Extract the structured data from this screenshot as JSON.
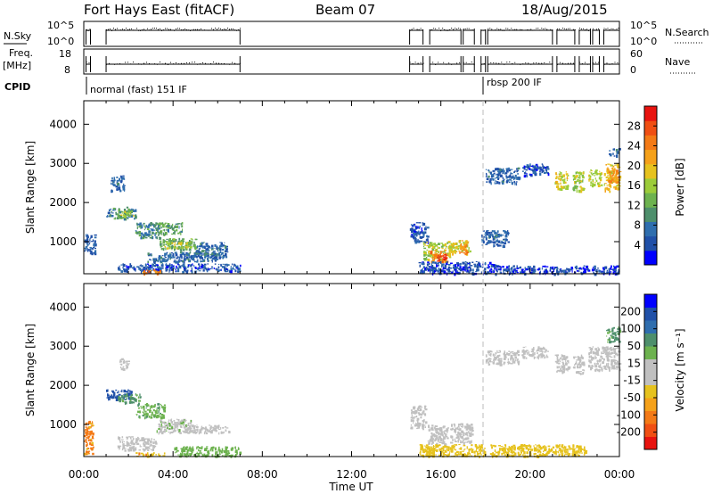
{
  "header": {
    "radar": "Fort Hays East (fitACF)",
    "beam": "Beam 07",
    "date": "18/Aug/2015"
  },
  "side_labels": {
    "nsky_label": "N.Sky",
    "nsky_ticks": [
      "10^5",
      "10^0"
    ],
    "nsearch_label": "N.Search",
    "nsearch_ticks": [
      "10^5",
      "10^0"
    ],
    "freq_label": "Freq.",
    "freq_unit": "[MHz]",
    "freq_ticks": [
      "18",
      "8"
    ],
    "nave_label": "Nave",
    "nave_ticks": [
      "60",
      "0"
    ],
    "cpid_label": "CPID",
    "cpid_modes": [
      {
        "label": "normal (fast) 151 IF",
        "start_hour": 0.0
      },
      {
        "label": "rbsp 200 IF",
        "start_hour": 18.0
      }
    ]
  },
  "colors": {
    "power_bar": [
      "#0000ff",
      "#2050a8",
      "#2f6eae",
      "#4e8f6c",
      "#6db24f",
      "#9ccc3a",
      "#e6c21e",
      "#f5a11a",
      "#f47a16",
      "#f04f13",
      "#e8130f"
    ],
    "velocity_bar": [
      "#e8130f",
      "#f04f13",
      "#f47a16",
      "#f5a11a",
      "#e6c21e",
      "#c0c0c0",
      "#c0c0c0",
      "#6db24f",
      "#4e8f6c",
      "#2f6eae",
      "#2050a8",
      "#0000ff"
    ],
    "scatter_grey": "#c0c0c0",
    "dashed": "#bbbbbb"
  },
  "chart_data": [
    {
      "type": "heatmap",
      "name": "power",
      "xlabel": "",
      "ylabel": "Slant Range [km]",
      "xlim": [
        0,
        24
      ],
      "ylim": [
        180,
        4600
      ],
      "yticks": [
        "1000",
        "2000",
        "3000",
        "4000"
      ],
      "colorbar_label": "Power [dB]",
      "colorbar_ticks": [
        "4",
        "8",
        "12",
        "16",
        "20",
        "24",
        "28"
      ],
      "colorbar_range": [
        0,
        32
      ],
      "blobs": [
        {
          "t0": 1.3,
          "t1": 2.3,
          "r0": 1600,
          "r1": 1900,
          "v": 10
        },
        {
          "t0": 1.5,
          "t1": 2.2,
          "r0": 1650,
          "r1": 1800,
          "v": 16
        },
        {
          "t0": 1.0,
          "t1": 1.3,
          "r0": 1650,
          "r1": 1850,
          "v": 8
        },
        {
          "t0": 1.2,
          "t1": 1.8,
          "r0": 2300,
          "r1": 2700,
          "v": 6
        },
        {
          "t0": 2.3,
          "t1": 3.4,
          "r0": 1100,
          "r1": 1500,
          "v": 9
        },
        {
          "t0": 3.2,
          "t1": 4.4,
          "r0": 1200,
          "r1": 1500,
          "v": 11
        },
        {
          "t0": 3.4,
          "t1": 5.0,
          "r0": 800,
          "r1": 1100,
          "v": 12
        },
        {
          "t0": 3.6,
          "t1": 4.8,
          "r0": 850,
          "r1": 1000,
          "v": 16
        },
        {
          "t0": 2.8,
          "t1": 6.0,
          "r0": 500,
          "r1": 750,
          "v": 7
        },
        {
          "t0": 1.5,
          "t1": 7.0,
          "r0": 250,
          "r1": 450,
          "v": 5
        },
        {
          "t0": 2.5,
          "t1": 3.5,
          "r0": 200,
          "r1": 300,
          "v": 24
        },
        {
          "t0": 0.0,
          "t1": 0.5,
          "r0": 700,
          "r1": 1200,
          "v": 6
        },
        {
          "t0": 5.0,
          "t1": 6.4,
          "r0": 600,
          "r1": 1000,
          "v": 7
        },
        {
          "t0": 14.6,
          "t1": 15.4,
          "r0": 1000,
          "r1": 1500,
          "v": 5
        },
        {
          "t0": 15.2,
          "t1": 16.4,
          "r0": 550,
          "r1": 1000,
          "v": 16
        },
        {
          "t0": 15.5,
          "t1": 16.3,
          "r0": 500,
          "r1": 800,
          "v": 24
        },
        {
          "t0": 15.8,
          "t1": 16.2,
          "r0": 450,
          "r1": 700,
          "v": 29
        },
        {
          "t0": 16.3,
          "t1": 17.3,
          "r0": 700,
          "r1": 1050,
          "v": 18
        },
        {
          "t0": 16.8,
          "t1": 17.2,
          "r0": 700,
          "r1": 950,
          "v": 24
        },
        {
          "t0": 15.0,
          "t1": 18.5,
          "r0": 200,
          "r1": 500,
          "v": 4
        },
        {
          "t0": 17.8,
          "t1": 19.0,
          "r0": 900,
          "r1": 1300,
          "v": 6
        },
        {
          "t0": 18.0,
          "t1": 19.5,
          "r0": 2500,
          "r1": 2900,
          "v": 6
        },
        {
          "t0": 19.6,
          "t1": 20.8,
          "r0": 2700,
          "r1": 3000,
          "v": 5
        },
        {
          "t0": 21.1,
          "t1": 21.7,
          "r0": 2350,
          "r1": 2800,
          "v": 18
        },
        {
          "t0": 21.9,
          "t1": 22.4,
          "r0": 2300,
          "r1": 2800,
          "v": 16
        },
        {
          "t0": 22.6,
          "t1": 23.2,
          "r0": 2450,
          "r1": 2850,
          "v": 17
        },
        {
          "t0": 23.3,
          "t1": 24.0,
          "r0": 2300,
          "r1": 3000,
          "v": 20
        },
        {
          "t0": 23.5,
          "t1": 24.0,
          "r0": 2500,
          "r1": 2850,
          "v": 23
        },
        {
          "t0": 23.5,
          "t1": 24.0,
          "r0": 3200,
          "r1": 3400,
          "v": 7
        },
        {
          "t0": 18.5,
          "t1": 24.0,
          "r0": 200,
          "r1": 400,
          "v": 4
        }
      ]
    },
    {
      "type": "heatmap",
      "name": "velocity",
      "xlabel": "Time UT",
      "ylabel": "Slant Range [km]",
      "xlim": [
        0,
        24
      ],
      "ylim": [
        180,
        4600
      ],
      "yticks": [
        "1000",
        "2000",
        "3000",
        "4000"
      ],
      "xticks": [
        "00:00",
        "04:00",
        "08:00",
        "12:00",
        "16:00",
        "20:00",
        "00:00"
      ],
      "colorbar_label": "Velocity [m s⁻¹]",
      "colorbar_ticks": [
        "-200",
        "-100",
        "-50",
        "-15",
        "15",
        "50",
        "100",
        "200"
      ],
      "blobs": [
        {
          "t0": 1.0,
          "t1": 2.2,
          "r0": 1650,
          "r1": 1900,
          "v": 150
        },
        {
          "t0": 1.5,
          "t1": 2.5,
          "r0": 1550,
          "r1": 1800,
          "v": 60
        },
        {
          "t0": 2.3,
          "t1": 3.6,
          "r0": 1200,
          "r1": 1550,
          "v": 40
        },
        {
          "t0": 3.2,
          "t1": 4.8,
          "r0": 800,
          "r1": 1150,
          "v": 5
        },
        {
          "t0": 4.5,
          "t1": 6.5,
          "r0": 800,
          "r1": 1000,
          "v": 0
        },
        {
          "t0": 1.5,
          "t1": 3.2,
          "r0": 350,
          "r1": 700,
          "v": 0
        },
        {
          "t0": 2.3,
          "t1": 3.6,
          "r0": 200,
          "r1": 300,
          "v": -40
        },
        {
          "t0": 4.0,
          "t1": 7.0,
          "r0": 200,
          "r1": 450,
          "v": 30
        },
        {
          "t0": 0.0,
          "t1": 0.4,
          "r0": 250,
          "r1": 1100,
          "v": -60
        },
        {
          "t0": 1.6,
          "t1": 2.0,
          "r0": 2400,
          "r1": 2700,
          "v": 0
        },
        {
          "t0": 14.6,
          "t1": 15.3,
          "r0": 900,
          "r1": 1500,
          "v": 0
        },
        {
          "t0": 15.4,
          "t1": 16.3,
          "r0": 500,
          "r1": 1000,
          "v": 0
        },
        {
          "t0": 16.4,
          "t1": 17.4,
          "r0": 550,
          "r1": 1050,
          "v": 0
        },
        {
          "t0": 15.0,
          "t1": 18.0,
          "r0": 200,
          "r1": 500,
          "v": -30
        },
        {
          "t0": 18.2,
          "t1": 22.5,
          "r0": 200,
          "r1": 500,
          "v": -30
        },
        {
          "t0": 18.0,
          "t1": 19.5,
          "r0": 2550,
          "r1": 2900,
          "v": 0
        },
        {
          "t0": 19.6,
          "t1": 20.8,
          "r0": 2700,
          "r1": 3000,
          "v": 0
        },
        {
          "t0": 21.1,
          "t1": 21.7,
          "r0": 2350,
          "r1": 2800,
          "v": 0
        },
        {
          "t0": 21.9,
          "t1": 22.4,
          "r0": 2300,
          "r1": 2800,
          "v": 0
        },
        {
          "t0": 22.6,
          "t1": 24.0,
          "r0": 2400,
          "r1": 3000,
          "v": 0
        },
        {
          "t0": 23.4,
          "t1": 24.0,
          "r0": 3100,
          "r1": 3500,
          "v": 60
        }
      ]
    }
  ]
}
